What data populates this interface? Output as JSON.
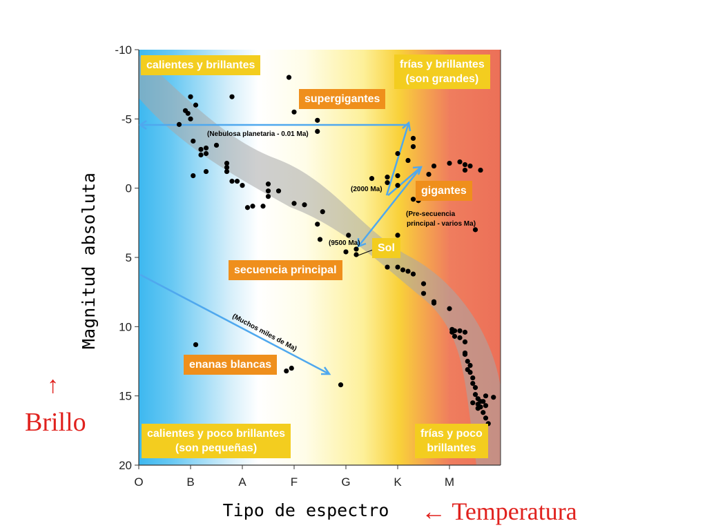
{
  "chart_data": {
    "type": "scatter",
    "xlabel": "Tipo de espectro",
    "ylabel": "Magnitud absoluta",
    "x_ticks": [
      "O",
      "B",
      "A",
      "F",
      "G",
      "K",
      "M"
    ],
    "y_ticks": [
      -10,
      -5,
      0,
      5,
      10,
      15,
      20
    ],
    "ylim": [
      -10,
      20
    ],
    "y_inverted": true,
    "grid": false,
    "colors": {
      "hot": "#3db8f0",
      "mid": "#fdf7c0",
      "warm": "#f9d94c",
      "cool": "#ec7858",
      "band": "#a8a8a8",
      "arrow": "#4fa8ee",
      "point": "#000000"
    },
    "points": [
      {
        "x": 0.78,
        "y": -4.6
      },
      {
        "x": 0.9,
        "y": -5.6
      },
      {
        "x": 0.95,
        "y": -5.4
      },
      {
        "x": 1.0,
        "y": -5.0
      },
      {
        "x": 1.0,
        "y": -6.6
      },
      {
        "x": 1.1,
        "y": -6.0
      },
      {
        "x": 1.05,
        "y": -3.4
      },
      {
        "x": 1.2,
        "y": -2.8
      },
      {
        "x": 1.2,
        "y": -2.4
      },
      {
        "x": 1.3,
        "y": -2.9
      },
      {
        "x": 1.3,
        "y": -2.5
      },
      {
        "x": 1.3,
        "y": -1.2
      },
      {
        "x": 1.05,
        "y": -0.9
      },
      {
        "x": 1.5,
        "y": -3.1
      },
      {
        "x": 1.7,
        "y": -1.8
      },
      {
        "x": 1.7,
        "y": -1.5
      },
      {
        "x": 1.7,
        "y": -1.2
      },
      {
        "x": 1.8,
        "y": -0.5
      },
      {
        "x": 1.9,
        "y": -0.5
      },
      {
        "x": 2.0,
        "y": -0.2
      },
      {
        "x": 2.1,
        "y": 1.4
      },
      {
        "x": 2.2,
        "y": 1.3
      },
      {
        "x": 2.4,
        "y": 1.3
      },
      {
        "x": 2.5,
        "y": 0.6
      },
      {
        "x": 2.5,
        "y": 0.2
      },
      {
        "x": 2.5,
        "y": -0.3
      },
      {
        "x": 2.7,
        "y": 0.2
      },
      {
        "x": 1.8,
        "y": -6.6
      },
      {
        "x": 2.9,
        "y": -8.0
      },
      {
        "x": 3.0,
        "y": -5.5
      },
      {
        "x": 3.0,
        "y": 1.1
      },
      {
        "x": 3.2,
        "y": 1.2
      },
      {
        "x": 3.45,
        "y": -4.9
      },
      {
        "x": 3.45,
        "y": -4.1
      },
      {
        "x": 3.45,
        "y": 2.6
      },
      {
        "x": 3.5,
        "y": 3.7
      },
      {
        "x": 3.55,
        "y": 1.7
      },
      {
        "x": 4.05,
        "y": 3.4
      },
      {
        "x": 4.0,
        "y": 4.6
      },
      {
        "x": 4.2,
        "y": 4.4
      },
      {
        "x": 4.2,
        "y": 4.8
      },
      {
        "x": 4.5,
        "y": -0.7
      },
      {
        "x": 4.8,
        "y": -0.8
      },
      {
        "x": 4.8,
        "y": -0.4
      },
      {
        "x": 5.0,
        "y": -0.9
      },
      {
        "x": 5.0,
        "y": -2.5
      },
      {
        "x": 5.0,
        "y": -0.2
      },
      {
        "x": 5.3,
        "y": -3.0
      },
      {
        "x": 5.3,
        "y": -3.6
      },
      {
        "x": 5.2,
        "y": -2.0
      },
      {
        "x": 5.4,
        "y": -0.2
      },
      {
        "x": 5.5,
        "y": 0.4
      },
      {
        "x": 5.3,
        "y": 0.8
      },
      {
        "x": 5.4,
        "y": 0.9
      },
      {
        "x": 5.6,
        "y": -1.0
      },
      {
        "x": 5.7,
        "y": -1.6
      },
      {
        "x": 6.0,
        "y": -1.8
      },
      {
        "x": 6.2,
        "y": -1.9
      },
      {
        "x": 6.3,
        "y": -1.7
      },
      {
        "x": 6.3,
        "y": -1.3
      },
      {
        "x": 6.4,
        "y": -1.6
      },
      {
        "x": 6.6,
        "y": -1.3
      },
      {
        "x": 6.5,
        "y": 3.0
      },
      {
        "x": 5.0,
        "y": 3.4
      },
      {
        "x": 4.8,
        "y": 5.7
      },
      {
        "x": 5.0,
        "y": 5.7
      },
      {
        "x": 5.1,
        "y": 5.9
      },
      {
        "x": 5.2,
        "y": 6.0
      },
      {
        "x": 5.3,
        "y": 6.2
      },
      {
        "x": 5.5,
        "y": 6.9
      },
      {
        "x": 5.5,
        "y": 7.6
      },
      {
        "x": 5.7,
        "y": 8.2
      },
      {
        "x": 5.7,
        "y": 8.3
      },
      {
        "x": 6.0,
        "y": 8.7
      },
      {
        "x": 6.05,
        "y": 10.2
      },
      {
        "x": 6.05,
        "y": 10.4
      },
      {
        "x": 6.1,
        "y": 10.3
      },
      {
        "x": 6.1,
        "y": 10.7
      },
      {
        "x": 6.2,
        "y": 10.3
      },
      {
        "x": 6.2,
        "y": 10.8
      },
      {
        "x": 6.3,
        "y": 10.4
      },
      {
        "x": 6.3,
        "y": 11.1
      },
      {
        "x": 6.3,
        "y": 11.9
      },
      {
        "x": 6.3,
        "y": 12.0
      },
      {
        "x": 6.35,
        "y": 12.5
      },
      {
        "x": 6.4,
        "y": 12.8
      },
      {
        "x": 6.35,
        "y": 13.1
      },
      {
        "x": 6.4,
        "y": 13.3
      },
      {
        "x": 6.45,
        "y": 13.7
      },
      {
        "x": 6.45,
        "y": 14.1
      },
      {
        "x": 6.5,
        "y": 14.4
      },
      {
        "x": 6.5,
        "y": 14.9
      },
      {
        "x": 6.55,
        "y": 15.2
      },
      {
        "x": 6.6,
        "y": 15.4
      },
      {
        "x": 6.6,
        "y": 15.8
      },
      {
        "x": 6.55,
        "y": 15.9
      },
      {
        "x": 6.65,
        "y": 16.2
      },
      {
        "x": 6.7,
        "y": 16.6
      },
      {
        "x": 6.65,
        "y": 15.4
      },
      {
        "x": 6.7,
        "y": 15.7
      },
      {
        "x": 6.7,
        "y": 15.0
      },
      {
        "x": 6.85,
        "y": 15.1
      },
      {
        "x": 6.45,
        "y": 15.5
      },
      {
        "x": 6.55,
        "y": 15.6
      },
      {
        "x": 6.75,
        "y": 17.0
      },
      {
        "x": 1.1,
        "y": 11.3
      },
      {
        "x": 2.95,
        "y": 13.0
      },
      {
        "x": 2.85,
        "y": 13.2
      },
      {
        "x": 3.9,
        "y": 14.2
      }
    ],
    "path_labels": {
      "planetary": "(Nebulosa planetaria - 0.01 Ma)",
      "giant_2000": "(2000 Ma)",
      "pre_main": "(Pre-secuencia principal - varios Ma)",
      "sun_9500": "(9500 Ma)",
      "white_dwarf": "(Muchos miles de Ma)"
    },
    "region_labels": {
      "hot_bright": "calientes y brillantes",
      "cool_bright_1": "frías y brillantes",
      "cool_bright_2": "(son grandes)",
      "supergiants": "supergigantes",
      "giants": "gigantes",
      "sun": "Sol",
      "main_sequence": "secuencia principal",
      "white_dwarfs": "enanas blancas",
      "hot_dim_1": "calientes y poco brillantes",
      "hot_dim_2": "(son pequeñas)",
      "cool_dim_1": "frías y poco",
      "cool_dim_2": "brillantes"
    }
  },
  "side_labels": {
    "brightness_arrow": "↑",
    "brightness": "Brillo",
    "temperature": "← Temperatura"
  }
}
